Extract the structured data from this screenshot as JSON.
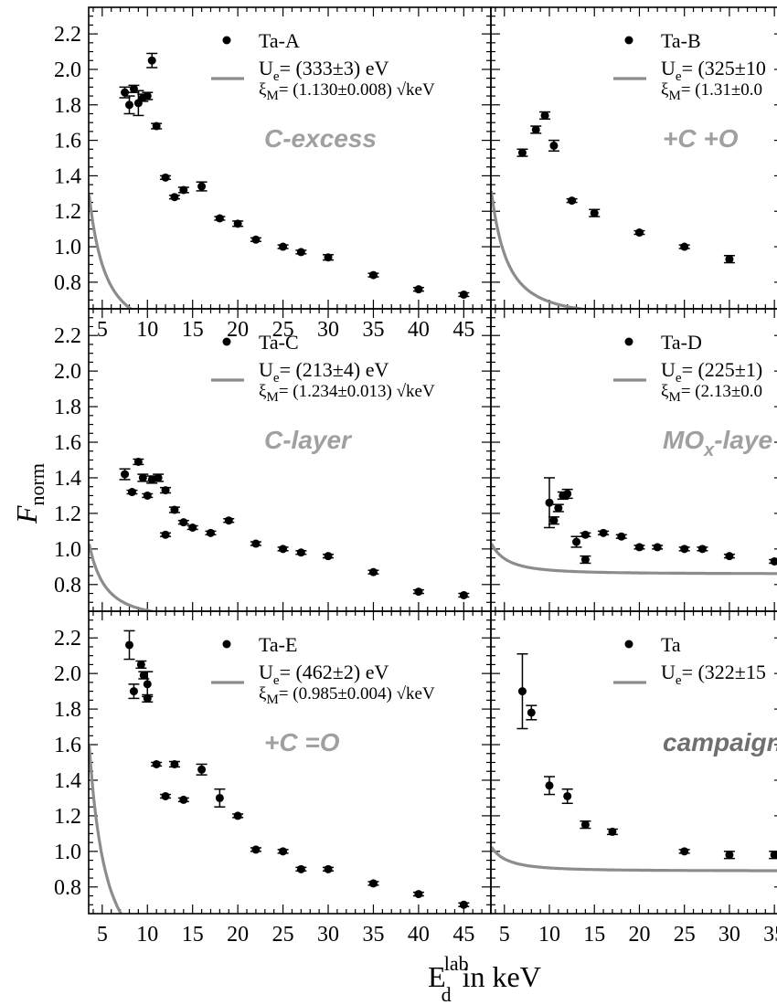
{
  "figure": {
    "ylabel_main": "F",
    "ylabel_sub": "norm",
    "xlabel_main": "E",
    "xlabel_sup": "lab",
    "xlabel_sub": "d",
    "xlabel_tail": " in keV",
    "colors": {
      "fit": "#8c8c8c",
      "marker": "#000000",
      "label": "#a0a0a0"
    }
  },
  "chart_data": [
    {
      "type": "scatter",
      "legend_marker": "Ta-A",
      "fit_line_1": "U",
      "fit_line_1_sub": "e",
      "fit_line_1_tail": "= (333±3) eV",
      "fit_line_2": "ξ",
      "fit_line_2_sub": "M",
      "fit_line_2_tail": "= (1.130±0.008) √keV",
      "panel_label": "C-excess",
      "xlim": [
        3.5,
        48
      ],
      "ylim": [
        0.65,
        2.35
      ],
      "xticks": [
        "5",
        "10",
        "15",
        "20",
        "25",
        "30",
        "35",
        "40",
        "45"
      ],
      "yticks": [
        "0.8",
        "1.0",
        "1.2",
        "1.4",
        "1.6",
        "1.8",
        "2.0",
        "2.2"
      ],
      "fit": {
        "A": 0.5,
        "B": 10.0
      },
      "points": [
        {
          "x": 7.5,
          "y": 1.87,
          "e": 0.03
        },
        {
          "x": 8.0,
          "y": 1.8,
          "e": 0.05
        },
        {
          "x": 8.5,
          "y": 1.89,
          "e": 0.02
        },
        {
          "x": 9.0,
          "y": 1.81,
          "e": 0.07
        },
        {
          "x": 9.5,
          "y": 1.84,
          "e": 0.02
        },
        {
          "x": 10.0,
          "y": 1.85,
          "e": 0.02
        },
        {
          "x": 10.5,
          "y": 2.05,
          "e": 0.04
        },
        {
          "x": 11.0,
          "y": 1.68,
          "e": 0.015
        },
        {
          "x": 12.0,
          "y": 1.39,
          "e": 0.01
        },
        {
          "x": 13.0,
          "y": 1.28,
          "e": 0.01
        },
        {
          "x": 14.0,
          "y": 1.32,
          "e": 0.015
        },
        {
          "x": 16.0,
          "y": 1.34,
          "e": 0.025
        },
        {
          "x": 18.0,
          "y": 1.16,
          "e": 0.01
        },
        {
          "x": 20.0,
          "y": 1.13,
          "e": 0.015
        },
        {
          "x": 22.0,
          "y": 1.04,
          "e": 0.01
        },
        {
          "x": 25.0,
          "y": 1.0,
          "e": 0.01
        },
        {
          "x": 27.0,
          "y": 0.97,
          "e": 0.01
        },
        {
          "x": 30.0,
          "y": 0.94,
          "e": 0.015
        },
        {
          "x": 35.0,
          "y": 0.84,
          "e": 0.01
        },
        {
          "x": 40.0,
          "y": 0.76,
          "e": 0.01
        },
        {
          "x": 45.0,
          "y": 0.73,
          "e": 0.01
        }
      ]
    },
    {
      "type": "scatter",
      "legend_marker": "Ta-B",
      "fit_line_1": "U",
      "fit_line_1_sub": "e",
      "fit_line_1_tail": "= (325±10",
      "fit_line_2": "ξ",
      "fit_line_2_sub": "M",
      "fit_line_2_tail": "= (1.31±0.0",
      "panel_label": "+C   +O",
      "xlim": [
        3.5,
        36
      ],
      "ylim": [
        0.65,
        2.35
      ],
      "xticks": [],
      "yticks": [],
      "fit": {
        "A": 0.6,
        "B": 9.0
      },
      "points": [
        {
          "x": 7.0,
          "y": 1.53,
          "e": 0.02
        },
        {
          "x": 8.5,
          "y": 1.66,
          "e": 0.02
        },
        {
          "x": 9.5,
          "y": 1.74,
          "e": 0.02
        },
        {
          "x": 10.5,
          "y": 1.57,
          "e": 0.03
        },
        {
          "x": 12.5,
          "y": 1.26,
          "e": 0.01
        },
        {
          "x": 15.0,
          "y": 1.19,
          "e": 0.02
        },
        {
          "x": 20.0,
          "y": 1.08,
          "e": 0.01
        },
        {
          "x": 25.0,
          "y": 1.0,
          "e": 0.01
        },
        {
          "x": 30.0,
          "y": 0.93,
          "e": 0.02
        }
      ]
    },
    {
      "type": "scatter",
      "legend_marker": "Ta-C",
      "fit_line_1": "U",
      "fit_line_1_sub": "e",
      "fit_line_1_tail": "= (213±4) eV",
      "fit_line_2": "ξ",
      "fit_line_2_sub": "M",
      "fit_line_2_tail": "= (1.234±0.013) √keV",
      "panel_label": "C-layer",
      "xlim": [
        3.5,
        48
      ],
      "ylim": [
        0.65,
        2.35
      ],
      "xticks": [],
      "yticks": [
        "0.8",
        "1.0",
        "1.2",
        "1.4",
        "1.6",
        "1.8",
        "2.0",
        "2.2"
      ],
      "fit": {
        "A": 0.6,
        "B": 5.4
      },
      "points": [
        {
          "x": 7.5,
          "y": 1.42,
          "e": 0.03
        },
        {
          "x": 8.3,
          "y": 1.32,
          "e": 0.01
        },
        {
          "x": 9.0,
          "y": 1.49,
          "e": 0.015
        },
        {
          "x": 9.5,
          "y": 1.4,
          "e": 0.02
        },
        {
          "x": 10.0,
          "y": 1.3,
          "e": 0.01
        },
        {
          "x": 10.5,
          "y": 1.39,
          "e": 0.02
        },
        {
          "x": 11.2,
          "y": 1.4,
          "e": 0.02
        },
        {
          "x": 12.0,
          "y": 1.33,
          "e": 0.015
        },
        {
          "x": 12.0,
          "y": 1.08,
          "e": 0.01
        },
        {
          "x": 13.0,
          "y": 1.22,
          "e": 0.015
        },
        {
          "x": 14.0,
          "y": 1.15,
          "e": 0.01
        },
        {
          "x": 15.0,
          "y": 1.12,
          "e": 0.01
        },
        {
          "x": 17.0,
          "y": 1.09,
          "e": 0.01
        },
        {
          "x": 19.0,
          "y": 1.16,
          "e": 0.01
        },
        {
          "x": 22.0,
          "y": 1.03,
          "e": 0.01
        },
        {
          "x": 25.0,
          "y": 1.0,
          "e": 0.01
        },
        {
          "x": 27.0,
          "y": 0.98,
          "e": 0.01
        },
        {
          "x": 30.0,
          "y": 0.96,
          "e": 0.01
        },
        {
          "x": 35.0,
          "y": 0.87,
          "e": 0.01
        },
        {
          "x": 40.0,
          "y": 0.76,
          "e": 0.01
        },
        {
          "x": 45.0,
          "y": 0.74,
          "e": 0.01
        }
      ]
    },
    {
      "type": "scatter",
      "legend_marker": "Ta-D",
      "fit_line_1": "U",
      "fit_line_1_sub": "e",
      "fit_line_1_tail": "= (225±1)",
      "fit_line_2": "ξ",
      "fit_line_2_sub": "M",
      "fit_line_2_tail": "= (2.13±0.0",
      "panel_label": "MO",
      "panel_label_sub": "x",
      "panel_label_tail": "-laye",
      "xlim": [
        3.5,
        36
      ],
      "ylim": [
        0.65,
        2.35
      ],
      "xticks": [],
      "yticks": [],
      "fit": {
        "A": 0.86,
        "B": 2.15
      },
      "points": [
        {
          "x": 10.0,
          "y": 1.26,
          "e": 0.14
        },
        {
          "x": 10.5,
          "y": 1.16,
          "e": 0.02
        },
        {
          "x": 11.0,
          "y": 1.23,
          "e": 0.02
        },
        {
          "x": 11.5,
          "y": 1.3,
          "e": 0.02
        },
        {
          "x": 12.0,
          "y": 1.31,
          "e": 0.025
        },
        {
          "x": 13.0,
          "y": 1.04,
          "e": 0.03
        },
        {
          "x": 14.0,
          "y": 0.94,
          "e": 0.02
        },
        {
          "x": 14.0,
          "y": 1.08,
          "e": 0.01
        },
        {
          "x": 16.0,
          "y": 1.09,
          "e": 0.01
        },
        {
          "x": 18.0,
          "y": 1.07,
          "e": 0.01
        },
        {
          "x": 20.0,
          "y": 1.01,
          "e": 0.01
        },
        {
          "x": 22.0,
          "y": 1.01,
          "e": 0.01
        },
        {
          "x": 25.0,
          "y": 1.0,
          "e": 0.01
        },
        {
          "x": 27.0,
          "y": 1.0,
          "e": 0.01
        },
        {
          "x": 30.0,
          "y": 0.96,
          "e": 0.01
        },
        {
          "x": 35.0,
          "y": 0.93,
          "e": 0.01
        }
      ]
    },
    {
      "type": "scatter",
      "legend_marker": "Ta-E",
      "fit_line_1": "U",
      "fit_line_1_sub": "e",
      "fit_line_1_tail": "= (462±2) eV",
      "fit_line_2": "ξ",
      "fit_line_2_sub": "M",
      "fit_line_2_tail": "= (0.985±0.004) √keV",
      "panel_label": "+C  =O",
      "xlim": [
        3.5,
        48
      ],
      "ylim": [
        0.65,
        2.35
      ],
      "xticks": [
        "5",
        "10",
        "15",
        "20",
        "25",
        "30",
        "35",
        "40",
        "45"
      ],
      "yticks": [
        "0.8",
        "1.0",
        "1.2",
        "1.4",
        "1.6",
        "1.8",
        "2.0",
        "2.2"
      ],
      "fit": {
        "A": 0.33,
        "B": 16.0
      },
      "points": [
        {
          "x": 8.0,
          "y": 2.16,
          "e": 0.08
        },
        {
          "x": 8.5,
          "y": 1.9,
          "e": 0.04
        },
        {
          "x": 9.3,
          "y": 2.05,
          "e": 0.02
        },
        {
          "x": 9.6,
          "y": 1.99,
          "e": 0.02
        },
        {
          "x": 10.0,
          "y": 1.94,
          "e": 0.07
        },
        {
          "x": 10.0,
          "y": 1.86,
          "e": 0.02
        },
        {
          "x": 11.0,
          "y": 1.49,
          "e": 0.01
        },
        {
          "x": 12.0,
          "y": 1.31,
          "e": 0.01
        },
        {
          "x": 13.0,
          "y": 1.49,
          "e": 0.015
        },
        {
          "x": 14.0,
          "y": 1.29,
          "e": 0.01
        },
        {
          "x": 16.0,
          "y": 1.46,
          "e": 0.03
        },
        {
          "x": 18.0,
          "y": 1.3,
          "e": 0.05
        },
        {
          "x": 20.0,
          "y": 1.2,
          "e": 0.01
        },
        {
          "x": 22.0,
          "y": 1.01,
          "e": 0.01
        },
        {
          "x": 25.0,
          "y": 1.0,
          "e": 0.01
        },
        {
          "x": 27.0,
          "y": 0.9,
          "e": 0.01
        },
        {
          "x": 30.0,
          "y": 0.9,
          "e": 0.01
        },
        {
          "x": 35.0,
          "y": 0.82,
          "e": 0.01
        },
        {
          "x": 40.0,
          "y": 0.76,
          "e": 0.01
        },
        {
          "x": 45.0,
          "y": 0.7,
          "e": 0.01
        }
      ]
    },
    {
      "type": "scatter",
      "legend_marker": "Ta",
      "fit_line_1": "U",
      "fit_line_1_sub": "e",
      "fit_line_1_tail": "= (322±15",
      "panel_label": "campaign",
      "xlim": [
        3.5,
        36
      ],
      "ylim": [
        0.65,
        2.35
      ],
      "xticks": [
        "5",
        "10",
        "15",
        "20",
        "25",
        "30",
        "35"
      ],
      "yticks": [],
      "fit": {
        "A": 0.89,
        "B": 1.7
      },
      "points": [
        {
          "x": 7.0,
          "y": 1.9,
          "e": 0.21
        },
        {
          "x": 8.0,
          "y": 1.78,
          "e": 0.04
        },
        {
          "x": 10.0,
          "y": 1.37,
          "e": 0.05
        },
        {
          "x": 12.0,
          "y": 1.31,
          "e": 0.04
        },
        {
          "x": 14.0,
          "y": 1.15,
          "e": 0.02
        },
        {
          "x": 17.0,
          "y": 1.11,
          "e": 0.015
        },
        {
          "x": 25.0,
          "y": 1.0,
          "e": 0.01
        },
        {
          "x": 30.0,
          "y": 0.98,
          "e": 0.02
        },
        {
          "x": 35.0,
          "y": 0.98,
          "e": 0.02
        }
      ]
    }
  ]
}
